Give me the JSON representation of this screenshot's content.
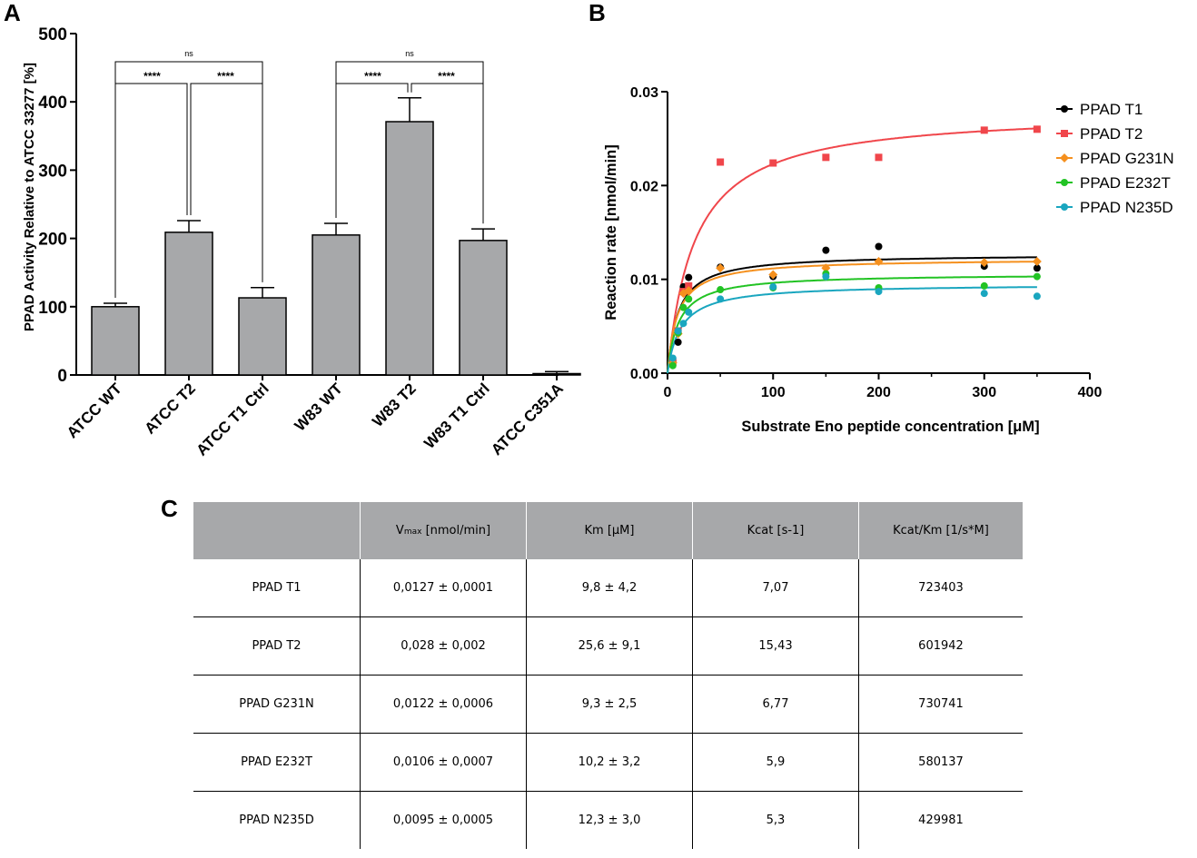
{
  "panel_labels": {
    "a": "A",
    "b": "B",
    "c": "C"
  },
  "colors": {
    "bar": "#a7a8aa",
    "t1": "#000000",
    "t2": "#f0464b",
    "g231n": "#f5901e",
    "e232t": "#22c324",
    "n235d": "#1aa6bf"
  },
  "chart_data": [
    {
      "type": "bar",
      "panel": "A",
      "ylabel": "PPAD Activity Relative to ATCC 33277 [%]",
      "ylim": [
        0,
        500
      ],
      "yticks": [
        0,
        100,
        200,
        300,
        400,
        500
      ],
      "categories": [
        "ATCC WT",
        "ATCC T2",
        "ATCC T1 Ctrl",
        "W83 WT",
        "W83 T2",
        "W83 T1 Ctrl",
        "ATCC C351A"
      ],
      "values": [
        100,
        209,
        113,
        205,
        371,
        197,
        2
      ],
      "errors": [
        5,
        17,
        15,
        17,
        35,
        17,
        3
      ],
      "significance": [
        {
          "from": 0,
          "to": 2,
          "level": 1,
          "label": "ns"
        },
        {
          "from": 0,
          "to": 1,
          "level": 0,
          "label": "****"
        },
        {
          "from": 1,
          "to": 2,
          "level": 0,
          "label": "****"
        },
        {
          "from": 3,
          "to": 5,
          "level": 1,
          "label": "ns"
        },
        {
          "from": 3,
          "to": 4,
          "level": 0,
          "label": "****"
        },
        {
          "from": 4,
          "to": 5,
          "level": 0,
          "label": "****"
        }
      ]
    },
    {
      "type": "scatter",
      "panel": "B",
      "xlabel": "Substrate Eno peptide concentration [μM]",
      "ylabel": "Reaction rate [nmol/min]",
      "xlim": [
        0,
        400
      ],
      "ylim": [
        0,
        0.03
      ],
      "xticks": [
        0,
        100,
        200,
        300,
        400
      ],
      "yticks": [
        0.0,
        0.01,
        0.02,
        0.03
      ],
      "ytick_labels": [
        "0.00",
        "0.01",
        "0.02",
        "0.03"
      ],
      "legend_position": "top-right",
      "series": [
        {
          "name": "PPAD T1",
          "color_key": "t1",
          "marker": "circle",
          "vmax": 0.0127,
          "km": 9.8,
          "x": [
            5,
            10,
            15,
            20,
            50,
            100,
            150,
            200,
            300,
            350
          ],
          "y": [
            0.0013,
            0.0033,
            0.0092,
            0.0102,
            0.0113,
            0.0103,
            0.0131,
            0.0135,
            0.0114,
            0.0112
          ]
        },
        {
          "name": "PPAD T2",
          "color_key": "t2",
          "marker": "square",
          "vmax": 0.028,
          "km": 25.6,
          "x": [
            5,
            10,
            15,
            20,
            50,
            100,
            150,
            200,
            300,
            350
          ],
          "y": [
            0.0012,
            0.0045,
            0.0087,
            0.0093,
            0.0225,
            0.0224,
            0.023,
            0.023,
            0.0259,
            0.026
          ]
        },
        {
          "name": "PPAD G231N",
          "color_key": "g231n",
          "marker": "diamond",
          "vmax": 0.0122,
          "km": 9.3,
          "x": [
            5,
            10,
            15,
            20,
            50,
            100,
            150,
            200,
            300,
            350
          ],
          "y": [
            0.0011,
            0.0042,
            0.0085,
            0.0088,
            0.0112,
            0.0105,
            0.0112,
            0.0119,
            0.0118,
            0.0119
          ]
        },
        {
          "name": "PPAD E232T",
          "color_key": "e232t",
          "marker": "circle",
          "vmax": 0.0106,
          "km": 10.2,
          "x": [
            5,
            10,
            15,
            20,
            50,
            100,
            150,
            200,
            300,
            350
          ],
          "y": [
            0.0008,
            0.0043,
            0.007,
            0.0079,
            0.0089,
            0.0091,
            0.0106,
            0.0091,
            0.0093,
            0.0103
          ]
        },
        {
          "name": "PPAD N235D",
          "color_key": "n235d",
          "marker": "circle",
          "vmax": 0.0095,
          "km": 12.3,
          "x": [
            5,
            10,
            15,
            20,
            50,
            100,
            150,
            200,
            300,
            350
          ],
          "y": [
            0.0016,
            0.0045,
            0.0053,
            0.0065,
            0.0079,
            0.0092,
            0.0103,
            0.0087,
            0.0085,
            0.0082
          ]
        }
      ]
    }
  ],
  "table": {
    "headers": [
      "",
      "V",
      "Km [µM]",
      "Kcat [s-1]",
      "Kcat/Km [1/s*M]"
    ],
    "vmax_sub": "max",
    "vmax_unit": " [nmol/min]",
    "rows": [
      [
        "PPAD T1",
        "0,0127 ± 0,0001",
        "9,8 ± 4,2",
        "7,07",
        "723403"
      ],
      [
        "PPAD T2",
        "0,028 ± 0,002",
        "25,6 ± 9,1",
        "15,43",
        "601942"
      ],
      [
        "PPAD G231N",
        "0,0122 ± 0,0006",
        "9,3 ± 2,5",
        "6,77",
        "730741"
      ],
      [
        "PPAD E232T",
        "0,0106 ± 0,0007",
        "10,2 ± 3,2",
        "5,9",
        "580137"
      ],
      [
        "PPAD N235D",
        "0,0095 ± 0,0005",
        "12,3 ± 3,0",
        "5,3",
        "429981"
      ]
    ]
  }
}
